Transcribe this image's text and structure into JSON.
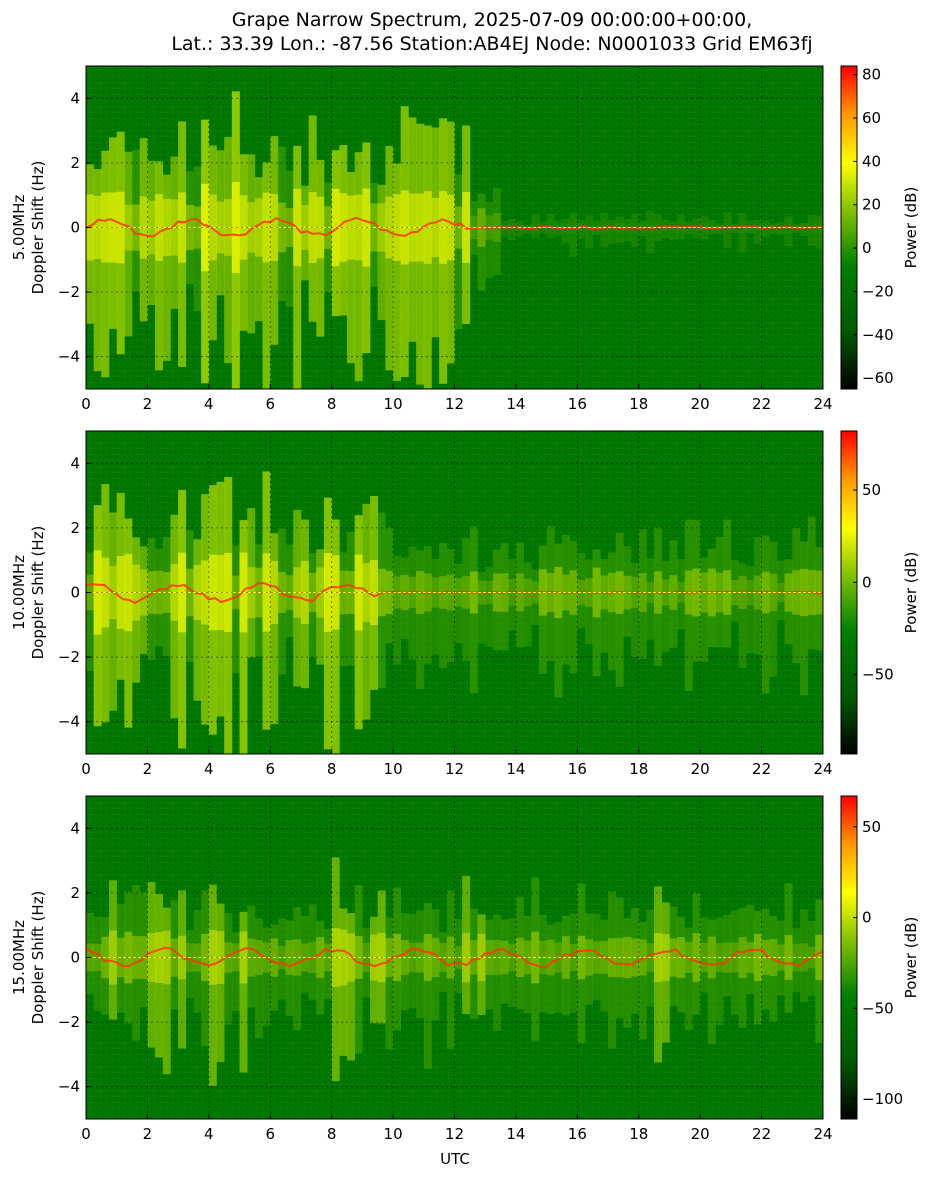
{
  "title_line1": "Grape Narrow Spectrum, 2025-07-09 00:00:00+00:00,",
  "title_line2": "Lat.: 33.39 Lon.: -87.56 Station:AB4EJ Node: N0001033 Grid EM63fj",
  "xlabel": "UTC",
  "colors": {
    "colormap": [
      "#000000",
      "#006400",
      "#008000",
      "#7fc000",
      "#ffff00",
      "#ff9900",
      "#ff0000"
    ],
    "background_band": "#007a00",
    "grid": "#000000"
  },
  "chart_data": [
    {
      "type": "heatmap",
      "panel": "5.00MHz",
      "ylabel_line1": "5.00MHz",
      "ylabel_line2": "Doppler Shift (Hz)",
      "colorbar_label": "Power (dB)",
      "x_range": [
        0,
        24
      ],
      "y_range": [
        -5,
        5
      ],
      "x_ticks": [
        "0",
        "2",
        "4",
        "6",
        "8",
        "10",
        "12",
        "14",
        "16",
        "18",
        "20",
        "22",
        "24"
      ],
      "y_ticks": [
        "4",
        "2",
        "0",
        "−2",
        "−4"
      ],
      "colorbar_range": [
        -65,
        84
      ],
      "colorbar_ticks": [
        "80",
        "60",
        "40",
        "20",
        "0",
        "−20",
        "−40",
        "−60"
      ],
      "grid": true
    },
    {
      "type": "heatmap",
      "panel": "10.00MHz",
      "ylabel_line1": "10.00MHz",
      "ylabel_line2": "Doppler Shift (Hz)",
      "colorbar_label": "Power (dB)",
      "x_range": [
        0,
        24
      ],
      "y_range": [
        -5,
        5
      ],
      "x_ticks": [
        "0",
        "2",
        "4",
        "6",
        "8",
        "10",
        "12",
        "14",
        "16",
        "18",
        "20",
        "22",
        "24"
      ],
      "y_ticks": [
        "4",
        "2",
        "0",
        "−2",
        "−4"
      ],
      "colorbar_range": [
        -93,
        82
      ],
      "colorbar_ticks": [
        "50",
        "0",
        "−50"
      ],
      "grid": true
    },
    {
      "type": "heatmap",
      "panel": "15.00MHz",
      "ylabel_line1": "15.00MHz",
      "ylabel_line2": "Doppler Shift (Hz)",
      "colorbar_label": "Power (dB)",
      "x_range": [
        0,
        24
      ],
      "y_range": [
        -5,
        5
      ],
      "x_ticks": [
        "0",
        "2",
        "4",
        "6",
        "8",
        "10",
        "12",
        "14",
        "16",
        "18",
        "20",
        "22",
        "24"
      ],
      "y_ticks": [
        "4",
        "2",
        "0",
        "−2",
        "−4"
      ],
      "colorbar_range": [
        -111,
        67
      ],
      "colorbar_ticks": [
        "50",
        "0",
        "−50",
        "−100"
      ],
      "grid": true
    }
  ]
}
